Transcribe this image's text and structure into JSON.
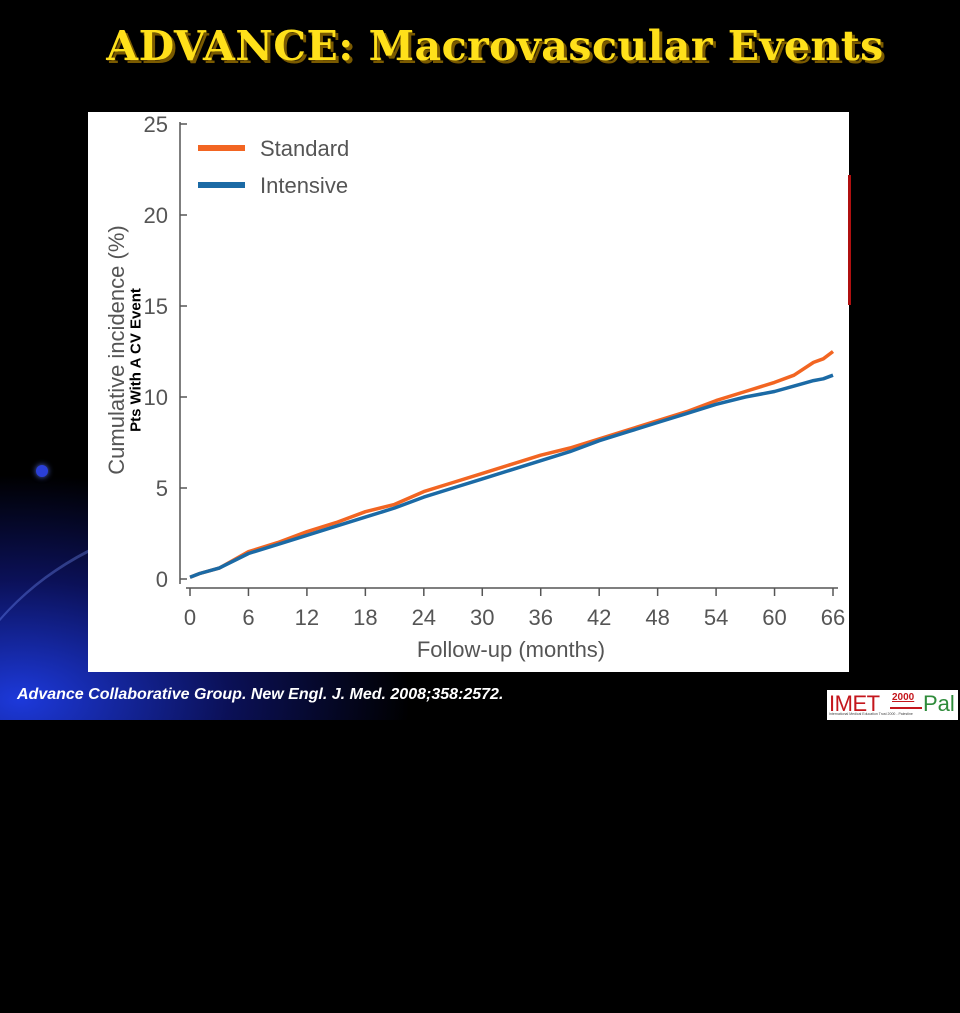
{
  "slide": {
    "title": "ADVANCE: Macrovascular Events",
    "overlay_label": "Pts With A CV Event",
    "citation": "Advance Collaborative Group. New Engl. J. Med. 2008;358:2572.",
    "logo": {
      "main": "IMET",
      "year": "2000",
      "suffix": "Pal",
      "tagline": "International Medical Education Trust 2000 - Palestine"
    }
  },
  "chart_data": {
    "type": "line",
    "title": "",
    "xlabel": "Follow-up (months)",
    "ylabel": "Cumulative incidence (%)",
    "xlim": [
      0,
      66
    ],
    "ylim": [
      0,
      25
    ],
    "xticks": [
      0,
      6,
      12,
      18,
      24,
      30,
      36,
      42,
      48,
      54,
      60,
      66
    ],
    "yticks": [
      0,
      5,
      10,
      15,
      20,
      25
    ],
    "grid": false,
    "legend_position": "top-left",
    "series": [
      {
        "name": "Standard",
        "color": "#f26522",
        "points": [
          [
            0,
            0.1
          ],
          [
            1,
            0.3
          ],
          [
            3,
            0.6
          ],
          [
            6,
            1.5
          ],
          [
            9,
            2.0
          ],
          [
            12,
            2.6
          ],
          [
            15,
            3.1
          ],
          [
            18,
            3.7
          ],
          [
            21,
            4.1
          ],
          [
            24,
            4.8
          ],
          [
            27,
            5.3
          ],
          [
            30,
            5.8
          ],
          [
            33,
            6.3
          ],
          [
            36,
            6.8
          ],
          [
            39,
            7.2
          ],
          [
            42,
            7.7
          ],
          [
            45,
            8.2
          ],
          [
            48,
            8.7
          ],
          [
            51,
            9.2
          ],
          [
            54,
            9.8
          ],
          [
            57,
            10.3
          ],
          [
            60,
            10.8
          ],
          [
            62,
            11.2
          ],
          [
            64,
            11.9
          ],
          [
            65,
            12.1
          ],
          [
            66,
            12.5
          ]
        ]
      },
      {
        "name": "Intensive",
        "color": "#1b6aa5",
        "points": [
          [
            0,
            0.1
          ],
          [
            1,
            0.3
          ],
          [
            3,
            0.6
          ],
          [
            6,
            1.4
          ],
          [
            9,
            1.9
          ],
          [
            12,
            2.4
          ],
          [
            15,
            2.9
          ],
          [
            18,
            3.4
          ],
          [
            21,
            3.9
          ],
          [
            24,
            4.5
          ],
          [
            27,
            5.0
          ],
          [
            30,
            5.5
          ],
          [
            33,
            6.0
          ],
          [
            36,
            6.5
          ],
          [
            39,
            7.0
          ],
          [
            42,
            7.6
          ],
          [
            45,
            8.1
          ],
          [
            48,
            8.6
          ],
          [
            51,
            9.1
          ],
          [
            54,
            9.6
          ],
          [
            57,
            10.0
          ],
          [
            60,
            10.3
          ],
          [
            62,
            10.6
          ],
          [
            64,
            10.9
          ],
          [
            65,
            11.0
          ],
          [
            66,
            11.2
          ]
        ]
      }
    ]
  }
}
